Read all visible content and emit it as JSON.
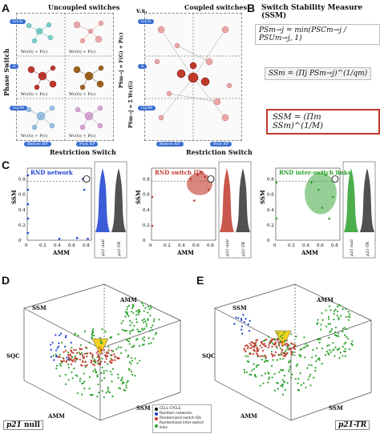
{
  "panelA": {
    "letter": "A",
    "left_title": "Uncoupled switches",
    "vs": "v.s.",
    "right_title": "Coupled switches",
    "y_axis": "Phase Switch",
    "x_axis": "Restriction Switch",
    "before_rp": "Before RP",
    "post_rp": "Post RP",
    "row_labels": [
      "G1/S",
      "S",
      "G2/M"
    ],
    "cell_formulas": [
      "Wc(G) + P(c)",
      "Wc(G) + P(c)",
      "Wc(G) + P(c)",
      "Wc(G) + P(c)",
      "Wc(G) + P(c)",
      "Wc(G) + P(c)"
    ],
    "middle_formula_1": "PSm→j = F(G) + P(c)",
    "middle_formula_2": "PSm→j = Σ Wc(G)"
  },
  "panelB": {
    "letter": "B",
    "title": "Switch Stability Measure (SSM)",
    "eq1": "PSm→j = min(PSCm→j / PSUm→j, 1)",
    "eq2": "SSm = (Πj PSm→j)^(1/qm)",
    "eq3": "SSM = (Πm SSm)^(1/M)"
  },
  "panelC": {
    "letter": "C",
    "subplots": [
      {
        "title": "RND network",
        "title_color": "#1a3fd0",
        "xlabel": "AMM",
        "ylabel": "SSM",
        "violin_labels": [
          "p21 null",
          "p21-TR"
        ]
      },
      {
        "title": "RND switch IDs",
        "title_color": "#c0392b",
        "xlabel": "AMM",
        "ylabel": "SSM",
        "violin_labels": [
          "p21 null",
          "p21-TR"
        ]
      },
      {
        "title": "RND inter-switch links",
        "title_color": "#2ca02c",
        "xlabel": "AMM",
        "ylabel": "SSM",
        "violin_labels": [
          "p21 null",
          "p21-TR"
        ]
      }
    ],
    "xticks": [
      "0",
      "0.2",
      "0.4",
      "0.6",
      "0.8"
    ],
    "yticks": [
      "0",
      "0.2",
      "0.4",
      "0.6",
      "0.8"
    ]
  },
  "panelD": {
    "letter": "D",
    "caption_italic": "p21",
    "caption_rest": " null",
    "axes": {
      "ssm": "SSM",
      "amm": "AMM",
      "sqc": "SQC"
    }
  },
  "panelE": {
    "letter": "E",
    "caption_italic": "p21-TR",
    "axes": {
      "ssm": "SSM",
      "amm": "AMM",
      "sqc": "SQC"
    }
  },
  "legend": {
    "items": [
      {
        "label": "CELL CYCLE",
        "color": "#000000"
      },
      {
        "label": "Random networks",
        "color": "#1a3fd0"
      },
      {
        "label": "Randomized switch IDs",
        "color": "#c0392b"
      },
      {
        "label": "Randomized inter-switch links",
        "color": "#2ca02c"
      }
    ]
  },
  "chart_data": [
    {
      "type": "scatter",
      "title": "RND network",
      "xlabel": "AMM",
      "ylabel": "SSM",
      "xlim": [
        0,
        0.9
      ],
      "ylim": [
        0,
        1.0
      ],
      "series": [
        {
          "name": "RND network",
          "values": [
            [
              0.01,
              0.1
            ],
            [
              0.01,
              0.3
            ],
            [
              0.01,
              0.5
            ],
            [
              0.01,
              0.7
            ],
            [
              0.01,
              0.9
            ],
            [
              0.45,
              0.02
            ],
            [
              0.7,
              0.03
            ],
            [
              0.78,
              0.85
            ],
            [
              0.8,
              0.7
            ],
            [
              0.85,
              0.02
            ]
          ]
        }
      ]
    },
    {
      "type": "scatter",
      "title": "RND switch IDs",
      "xlabel": "AMM",
      "ylabel": "SSM",
      "xlim": [
        0,
        0.9
      ],
      "ylim": [
        0,
        1.0
      ],
      "series": [
        {
          "name": "RND switch IDs",
          "values": [
            [
              0.01,
              0.2
            ],
            [
              0.01,
              0.6
            ],
            [
              0.55,
              0.85
            ],
            [
              0.65,
              0.9
            ],
            [
              0.75,
              0.88
            ],
            [
              0.8,
              0.7
            ],
            [
              0.6,
              0.55
            ],
            [
              0.7,
              0.95
            ]
          ]
        }
      ]
    },
    {
      "type": "scatter",
      "title": "RND inter-switch links",
      "xlabel": "AMM",
      "ylabel": "SSM",
      "xlim": [
        0,
        0.9
      ],
      "ylim": [
        0,
        1.0
      ],
      "series": [
        {
          "name": "RND inter-switch links",
          "values": [
            [
              0.01,
              0.3
            ],
            [
              0.01,
              0.8
            ],
            [
              0.5,
              0.8
            ],
            [
              0.6,
              0.7
            ],
            [
              0.7,
              0.9
            ],
            [
              0.8,
              0.6
            ],
            [
              0.65,
              0.45
            ],
            [
              0.75,
              0.3
            ]
          ]
        }
      ]
    }
  ]
}
